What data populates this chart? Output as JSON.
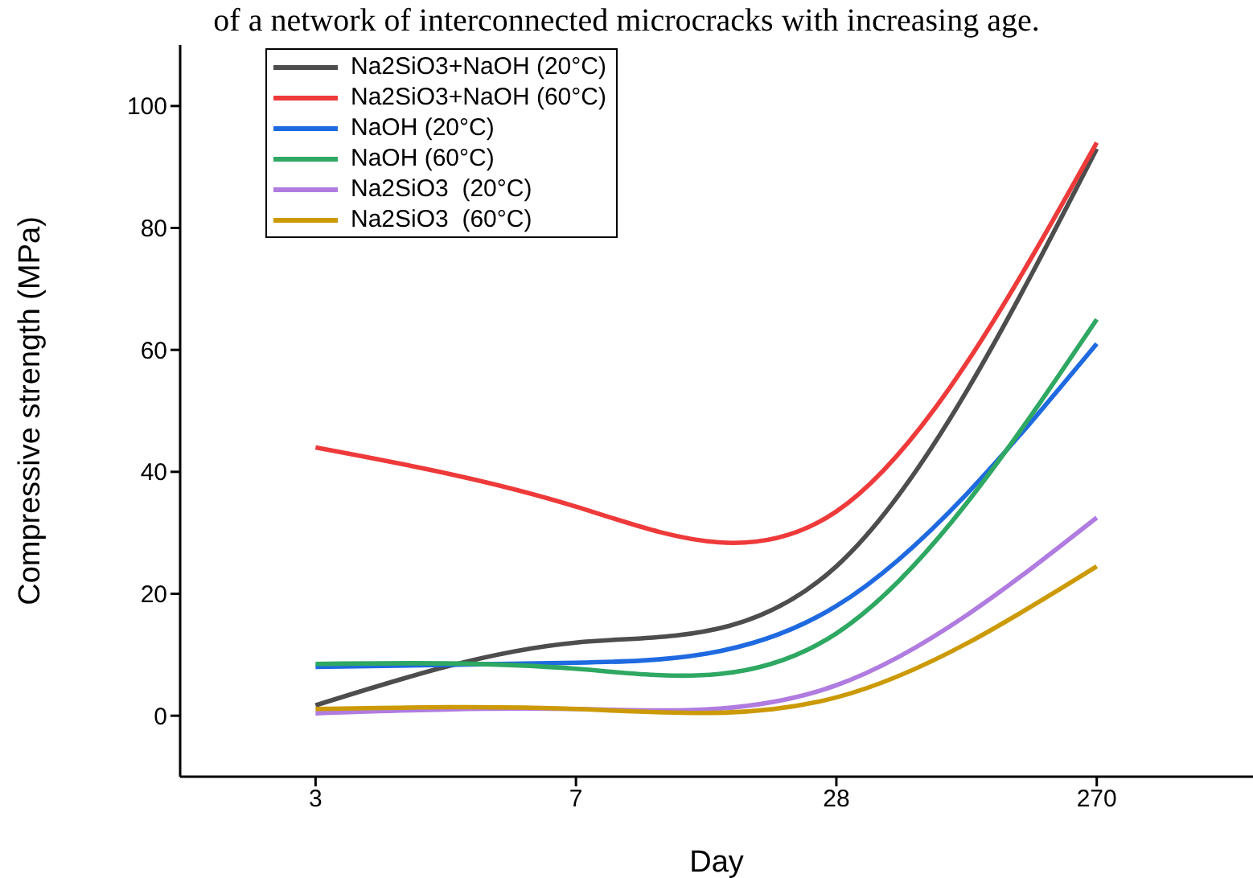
{
  "chart_data": {
    "type": "line",
    "xlabel": "Day",
    "ylabel": "Compressive strength (MPa)",
    "annotations": [
      "of a network of interconnected microcracks with increasing age."
    ],
    "categories": [
      "3",
      "7",
      "28",
      "270"
    ],
    "series": [
      {
        "name": "Na2SiO3+NaOH (20°C)",
        "color": "#4d4d4d",
        "values": [
          1.7,
          12,
          24.5,
          93
        ]
      },
      {
        "name": "Na2SiO3+NaOH (60°C)",
        "color": "#ee3a3a",
        "values": [
          44,
          34.3,
          33.5,
          94
        ]
      },
      {
        "name": "NaOH (20°C)",
        "color": "#1f6ae0",
        "values": [
          8,
          8.7,
          18,
          61
        ]
      },
      {
        "name": "NaOH (60°C)",
        "color": "#2ea862",
        "values": [
          8.5,
          7.7,
          13.5,
          65
        ]
      },
      {
        "name": "Na2SiO3  (20°C)",
        "color": "#b07ce0",
        "values": [
          0.4,
          1.1,
          5,
          32.5
        ]
      },
      {
        "name": "Na2SiO3  (60°C)",
        "color": "#cc9a06",
        "values": [
          1.1,
          1.1,
          3,
          24.5
        ]
      }
    ],
    "ylim": [
      -10,
      110
    ],
    "yticks": [
      0,
      20,
      40,
      60,
      80,
      100
    ],
    "grid": false,
    "legend": "top left",
    "marker": "none",
    "line_style": "solid"
  }
}
